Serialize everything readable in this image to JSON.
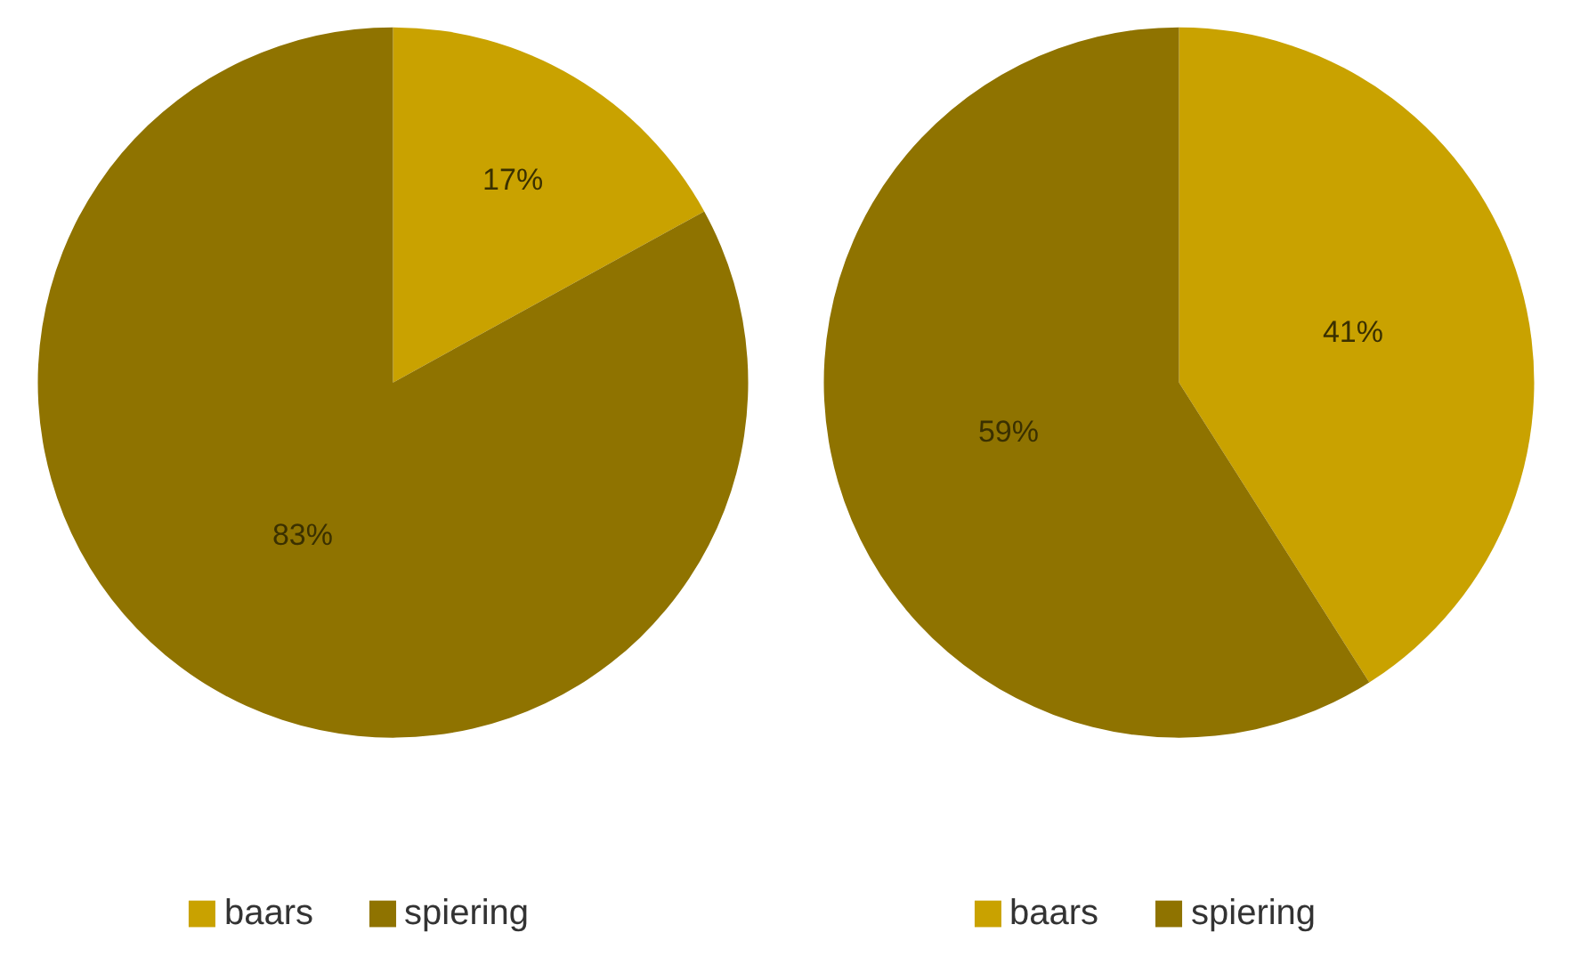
{
  "chart_data": [
    {
      "type": "pie",
      "categories": [
        "baars",
        "spiering"
      ],
      "values": [
        17,
        83
      ],
      "colors": [
        "#c9a200",
        "#8f7300"
      ],
      "value_labels": [
        "17%",
        "83%"
      ],
      "legend": "bottom"
    },
    {
      "type": "pie",
      "categories": [
        "baars",
        "spiering"
      ],
      "values": [
        41,
        59
      ],
      "colors": [
        "#c9a200",
        "#8f7300"
      ],
      "value_labels": [
        "41%",
        "59%"
      ],
      "legend": "bottom"
    }
  ]
}
